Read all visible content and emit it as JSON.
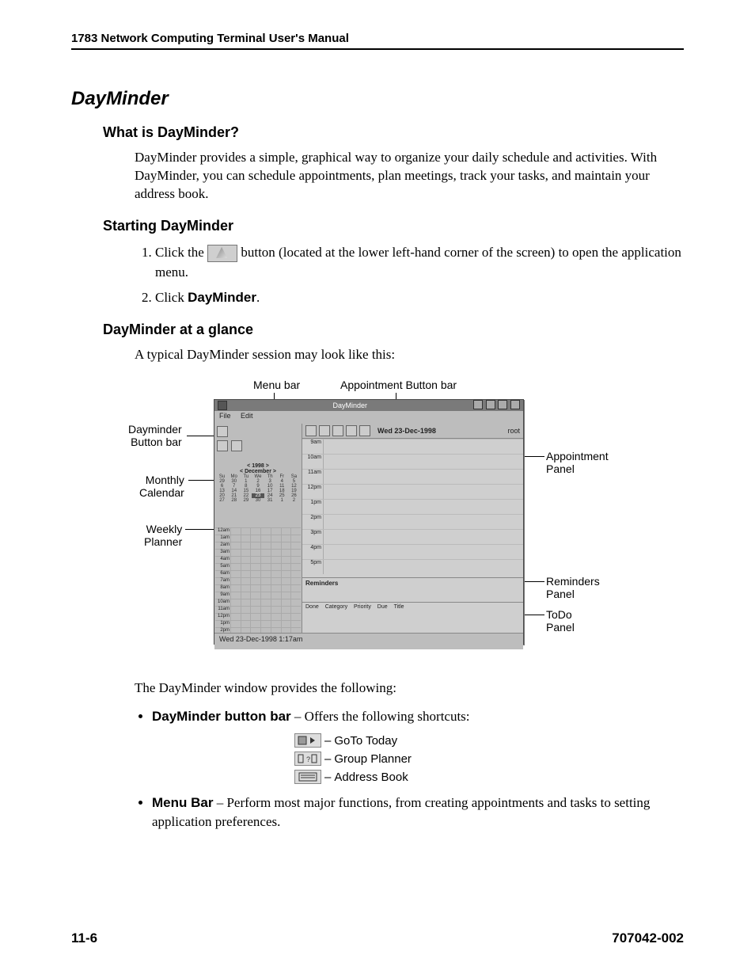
{
  "header": {
    "running": "1783 Network Computing Terminal User's Manual"
  },
  "title": "DayMinder",
  "s1": {
    "heading": "What is DayMinder?",
    "para": "DayMinder provides a simple, graphical way to organize your daily schedule and activities. With DayMinder, you can schedule appointments, plan meetings, track your tasks, and maintain your address book."
  },
  "s2": {
    "heading": "Starting DayMinder",
    "step1a": "Click the ",
    "step1b": " button (located at the lower left-hand corner of the screen) to open the application menu.",
    "step2a": "Click ",
    "step2b": "DayMinder",
    "step2c": "."
  },
  "s3": {
    "heading": "DayMinder at a glance",
    "para": "A typical DayMinder session may look like this:"
  },
  "fig": {
    "callouts": {
      "menubar": "Menu bar",
      "apptbar": "Appointment Button bar",
      "dmbar_l1": "Dayminder",
      "dmbar_l2": "Button bar",
      "monthcal_l1": "Monthly",
      "monthcal_l2": "Calendar",
      "weekly_l1": "Weekly",
      "weekly_l2": "Planner",
      "apptpanel_l1": "Appointment",
      "apptpanel_l2": "Panel",
      "rem_l1": "Reminders",
      "rem_l2": "Panel",
      "todo_l1": "ToDo",
      "todo_l2": "Panel"
    },
    "window": {
      "title": "DayMinder",
      "menu_file": "File",
      "menu_edit": "Edit",
      "month_year": "1998",
      "month_name": "December",
      "dow": [
        "Su",
        "Mo",
        "Tu",
        "We",
        "Th",
        "Fr",
        "Sa"
      ],
      "selected_day": "23",
      "appt_date": "Wed 23-Dec-1998",
      "appt_user": "root",
      "times": [
        "9am",
        "10am",
        "11am",
        "12pm",
        "1pm",
        "2pm",
        "3pm",
        "4pm",
        "5pm"
      ],
      "reminders_label": "Reminders",
      "todo_cols": {
        "done": "Done",
        "cat": "Category",
        "pri": "Priority",
        "due": "Due",
        "title": "Title"
      },
      "status": "Wed 23-Dec-1998 1:17am"
    }
  },
  "after": {
    "intro": "The DayMinder window provides the following:",
    "b1_bold": "DayMinder button bar",
    "b1_rest": " – Offers the following shortcuts:",
    "shortcut1": "GoTo Today",
    "shortcut2": "Group Planner",
    "shortcut3": "Address Book",
    "b2_bold": "Menu Bar",
    "b2_rest": " – Perform most major functions, from creating appointments and tasks to setting application preferences."
  },
  "footer": {
    "left": "11-6",
    "right": "707042-002"
  }
}
